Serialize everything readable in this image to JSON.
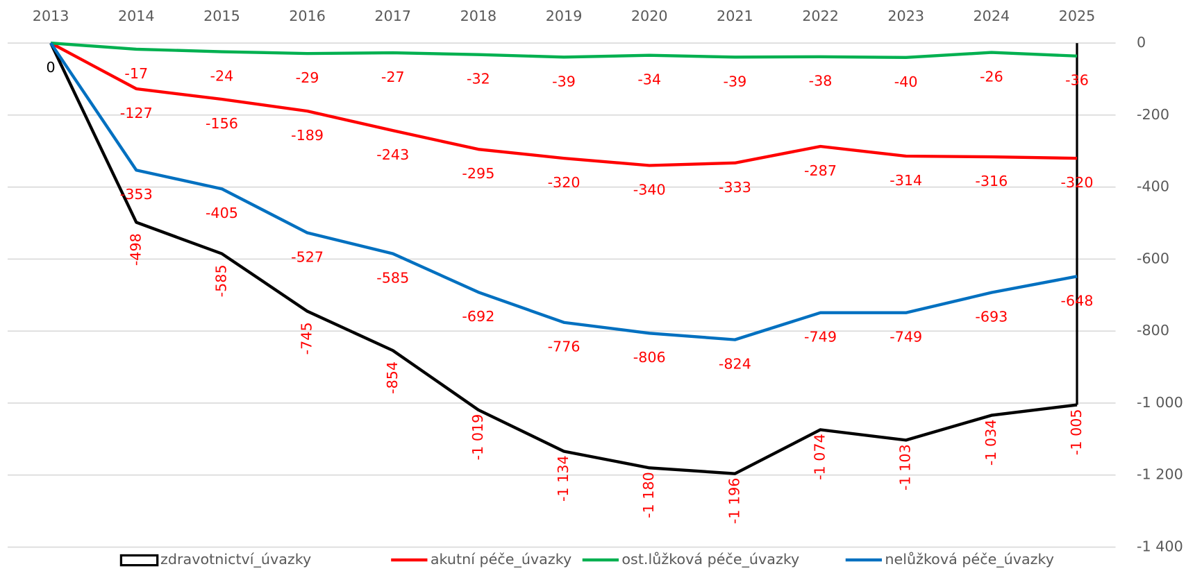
{
  "chart_data": {
    "type": "line",
    "categories": [
      "2013",
      "2014",
      "2015",
      "2016",
      "2017",
      "2018",
      "2019",
      "2020",
      "2021",
      "2022",
      "2023",
      "2024",
      "2025"
    ],
    "series": [
      {
        "name": "zdravotnictví_úvazky",
        "type": "area",
        "color": "#000000",
        "values": [
          0,
          -498,
          -585,
          -745,
          -854,
          -1019,
          -1134,
          -1180,
          -1196,
          -1074,
          -1103,
          -1034,
          -1005
        ],
        "value_labels": [
          "0",
          "-498",
          "-585",
          "-745",
          "-854",
          "-1 019",
          "-1 134",
          "-1 180",
          "-1 196",
          "-1 074",
          "-1 103",
          "-1 034",
          "-1 005"
        ]
      },
      {
        "name": "akutní péče_úvazky",
        "type": "line",
        "color": "#ff0000",
        "values": [
          0,
          -127,
          -156,
          -189,
          -243,
          -295,
          -320,
          -340,
          -333,
          -287,
          -314,
          -316,
          -320
        ],
        "value_labels": [
          null,
          "-127",
          "-156",
          "-189",
          "-243",
          "-295",
          "-320",
          "-340",
          "-333",
          "-287",
          "-314",
          "-316",
          "-320"
        ]
      },
      {
        "name": "ost.lůžková péče_úvazky",
        "type": "line",
        "color": "#00b050",
        "values": [
          0,
          -17,
          -24,
          -29,
          -27,
          -32,
          -39,
          -34,
          -39,
          -38,
          -40,
          -26,
          -36
        ],
        "value_labels": [
          null,
          "-17",
          "-24",
          "-29",
          "-27",
          "-32",
          "-39",
          "-34",
          "-39",
          "-38",
          "-40",
          "-26",
          "-36"
        ]
      },
      {
        "name": "nelůžková péče_úvazky",
        "type": "line",
        "color": "#0070c0",
        "values": [
          0,
          -353,
          -405,
          -527,
          -585,
          -692,
          -776,
          -806,
          -824,
          -749,
          -749,
          -693,
          -648
        ],
        "value_labels": [
          null,
          "-353",
          "-405",
          "-527",
          "-585",
          "-692",
          "-776",
          "-806",
          "-824",
          "-749",
          "-749",
          "-693",
          "-648"
        ]
      }
    ],
    "ylim": [
      -1400,
      0
    ],
    "yticks": [
      0,
      -200,
      -400,
      -600,
      -800,
      {
        "value": -1000,
        "label": "-1 000"
      },
      {
        "value": -1200,
        "label": "-1 200"
      },
      {
        "value": -1400,
        "label": "-1 400"
      }
    ],
    "grid": true,
    "label_color": "#ff0000",
    "legend": "bottom"
  }
}
